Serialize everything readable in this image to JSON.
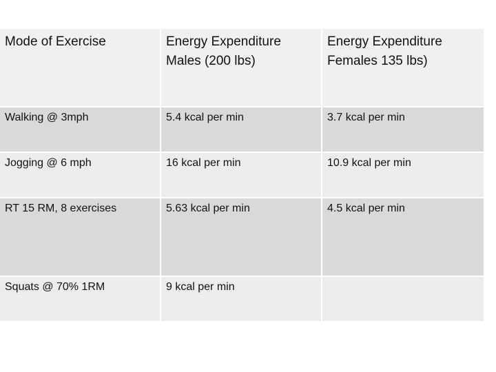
{
  "table": {
    "headers": [
      [
        "Mode of Exercise"
      ],
      [
        "Energy Expenditure",
        "Males (200 lbs)"
      ],
      [
        "Energy Expenditure",
        "Females 135 lbs)"
      ]
    ],
    "rows": [
      [
        "Walking @ 3mph",
        "5.4 kcal per min",
        "3.7 kcal per min"
      ],
      [
        "Jogging @ 6 mph",
        "16 kcal per min",
        "10.9 kcal per min"
      ],
      [
        "RT 15 RM, 8 exercises",
        "5.63 kcal per min",
        "4.5 kcal per min"
      ],
      [
        "Squats @ 70% 1RM",
        "9 kcal per min",
        ""
      ]
    ]
  },
  "colors": {
    "header_bg": "#f0f0f0",
    "row_dark": "#d9d9d9",
    "row_light": "#ececec",
    "text": "#111111"
  }
}
